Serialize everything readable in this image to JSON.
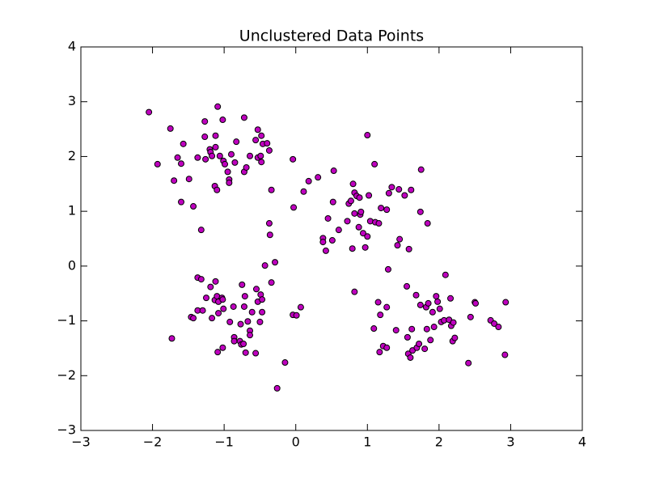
{
  "chart_data": {
    "type": "scatter",
    "title": "Unclustered Data Points",
    "color": "#bf00bf",
    "edgecolor": "#000000",
    "x": [
      -2.05,
      -1.93,
      -1.75,
      -1.7,
      -1.65,
      -1.6,
      -1.57,
      -1.6,
      -1.49,
      -1.43,
      -1.37,
      -1.32,
      -1.27,
      -1.27,
      -1.26,
      -1.2,
      -1.19,
      -1.17,
      -1.12,
      -1.12,
      -1.13,
      -1.1,
      -1.09,
      -1.06,
      -1.02,
      -1.01,
      -0.99,
      -0.95,
      -0.93,
      -0.93,
      -0.9,
      -0.85,
      -0.83,
      -0.72,
      -0.72,
      -0.69,
      -0.64,
      -0.56,
      -0.53,
      -0.53,
      -0.48,
      -0.49,
      -0.48,
      -0.46,
      -0.4,
      -0.37,
      -0.34,
      -0.37,
      -0.36,
      -0.04,
      -0.03,
      0.11,
      0.18,
      0.31,
      0.38,
      0.38,
      0.42,
      0.45,
      0.51,
      0.52,
      0.53,
      0.6,
      0.72,
      0.74,
      0.77,
      0.79,
      0.8,
      0.82,
      0.82,
      0.85,
      0.88,
      0.89,
      0.9,
      0.91,
      0.94,
      0.97,
      1.0,
      1.02,
      1.0,
      1.04,
      1.1,
      1.11,
      1.16,
      1.19,
      1.27,
      1.3,
      1.34,
      1.42,
      1.45,
      1.44,
      1.52,
      1.58,
      1.61,
      1.74,
      1.75,
      1.84,
      -1.73,
      -1.46,
      -1.43,
      -1.37,
      -1.32,
      -1.37,
      -1.3,
      -1.25,
      -1.19,
      -1.17,
      -1.12,
      -1.13,
      -1.1,
      -1.08,
      -1.08,
      -1.03,
      -1.01,
      -1.09,
      -1.02,
      -1.02,
      -0.92,
      -0.87,
      -0.86,
      -0.86,
      -0.78,
      -0.77,
      -0.76,
      -0.75,
      -0.73,
      -0.72,
      -0.71,
      -0.7,
      -0.67,
      -0.64,
      -0.64,
      -0.61,
      -0.56,
      -0.55,
      -0.53,
      -0.5,
      -0.49,
      -0.47,
      -0.47,
      -0.43,
      -0.34,
      -0.29,
      -0.26,
      -0.15,
      -0.04,
      0.01,
      0.07,
      0.82,
      1.09,
      1.15,
      1.18,
      1.17,
      1.22,
      1.27,
      1.27,
      1.29,
      1.4,
      1.55,
      1.56,
      1.57,
      1.6,
      1.62,
      1.63,
      1.68,
      1.69,
      1.72,
      1.74,
      1.8,
      1.82,
      1.83,
      1.85,
      1.88,
      1.91,
      1.93,
      1.96,
      1.98,
      2.01,
      2.03,
      2.09,
      2.07,
      2.14,
      2.16,
      2.17,
      2.19,
      2.22,
      2.2,
      2.41,
      2.44,
      2.5,
      2.51,
      2.72,
      2.77,
      2.83,
      2.92,
      2.93
    ],
    "y": [
      2.81,
      1.86,
      2.51,
      1.56,
      1.98,
      1.87,
      2.23,
      1.17,
      1.59,
      1.09,
      1.98,
      0.66,
      2.64,
      2.36,
      1.95,
      2.13,
      2.08,
      2.01,
      2.38,
      2.17,
      1.46,
      1.39,
      2.91,
      2.01,
      2.67,
      1.92,
      1.86,
      1.72,
      1.58,
      1.52,
      2.04,
      1.89,
      2.27,
      2.71,
      1.72,
      1.8,
      2.01,
      2.3,
      2.49,
      1.98,
      2.38,
      2.01,
      1.9,
      2.23,
      2.24,
      2.11,
      1.39,
      0.78,
      0.57,
      1.95,
      1.07,
      1.36,
      1.55,
      1.62,
      0.51,
      0.44,
      0.28,
      0.87,
      0.47,
      1.17,
      1.74,
      0.66,
      0.82,
      1.14,
      1.19,
      0.32,
      1.5,
      1.34,
      0.96,
      1.28,
      0.71,
      1.25,
      0.94,
      0.99,
      0.6,
      0.34,
      0.54,
      1.29,
      2.39,
      0.82,
      1.86,
      0.8,
      0.78,
      1.06,
      1.03,
      1.33,
      1.44,
      0.38,
      0.49,
      1.4,
      1.29,
      0.31,
      1.39,
      0.99,
      1.76,
      0.78,
      -1.32,
      -0.93,
      -0.95,
      -0.21,
      -0.24,
      -0.81,
      -0.81,
      -0.58,
      -0.38,
      -0.95,
      -0.28,
      -0.62,
      -0.55,
      -0.65,
      -0.86,
      -0.58,
      -0.78,
      -1.57,
      -1.49,
      -0.61,
      -1.02,
      -0.74,
      -1.3,
      -1.37,
      -1.37,
      -1.06,
      -1.43,
      -0.34,
      -1.42,
      -0.74,
      -0.55,
      -1.58,
      -1.01,
      -1.18,
      -1.26,
      -0.84,
      -1.59,
      -0.42,
      -0.65,
      -1.02,
      -0.52,
      -0.84,
      -0.61,
      0.01,
      -0.3,
      0.07,
      -2.23,
      -1.76,
      -0.89,
      -0.9,
      -0.75,
      -0.47,
      -1.14,
      -0.66,
      -0.89,
      -1.57,
      -1.46,
      -0.75,
      -1.49,
      -0.06,
      -1.17,
      -0.37,
      -1.3,
      -1.6,
      -1.67,
      -1.15,
      -1.54,
      -0.53,
      -1.49,
      -1.42,
      -0.71,
      -1.51,
      -0.75,
      -1.15,
      -0.68,
      -1.35,
      -0.84,
      -1.11,
      -0.55,
      -0.65,
      -0.78,
      -1.02,
      -0.16,
      -0.99,
      -0.98,
      -0.59,
      -1.09,
      -1.37,
      -1.31,
      -1.03,
      -1.77,
      -0.93,
      -0.66,
      -0.68,
      -0.99,
      -1.05,
      -1.11,
      -1.62,
      -0.66
    ],
    "xlim": [
      -3,
      4
    ],
    "ylim": [
      -3,
      4
    ],
    "xticks": [
      {
        "value": -3,
        "label": "−3"
      },
      {
        "value": -2,
        "label": "−2"
      },
      {
        "value": -1,
        "label": "−1"
      },
      0,
      1,
      2,
      3,
      4
    ],
    "yticks": [
      {
        "value": -3,
        "label": "−3"
      },
      {
        "value": -2,
        "label": "−2"
      },
      {
        "value": -1,
        "label": "−1"
      },
      0,
      1,
      2,
      3,
      4
    ],
    "grid": false
  }
}
